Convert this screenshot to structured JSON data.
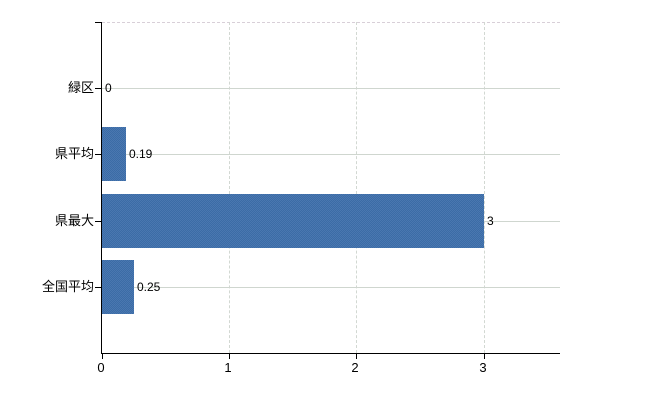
{
  "chart_data": {
    "type": "bar",
    "orientation": "horizontal",
    "title": "",
    "xlabel": "",
    "ylabel": "",
    "categories": [
      "緑区",
      "県平均",
      "県最大",
      "全国平均"
    ],
    "values": [
      0,
      0.19,
      3,
      0.25
    ],
    "value_labels": [
      "0",
      "0.19",
      "3",
      "0.25"
    ],
    "xlim": [
      0,
      3.6
    ],
    "xticks": [
      0,
      1,
      2,
      3
    ],
    "xtick_labels": [
      "0",
      "1",
      "2",
      "3"
    ],
    "grid": {
      "horizontal_style": "solid",
      "vertical_style": "dashed",
      "top_border_style": "dashed"
    },
    "legend": "none",
    "colors": {
      "bar": "#3b6ca6",
      "bar_dither_light": "#4a77b0",
      "grid_horizontal": "#cfd6cf",
      "grid_vertical": "#d2d8d2",
      "plot_top_border": "#d8cfd8",
      "axis": "#000000",
      "text": "#000000",
      "background": "#ffffff"
    }
  }
}
